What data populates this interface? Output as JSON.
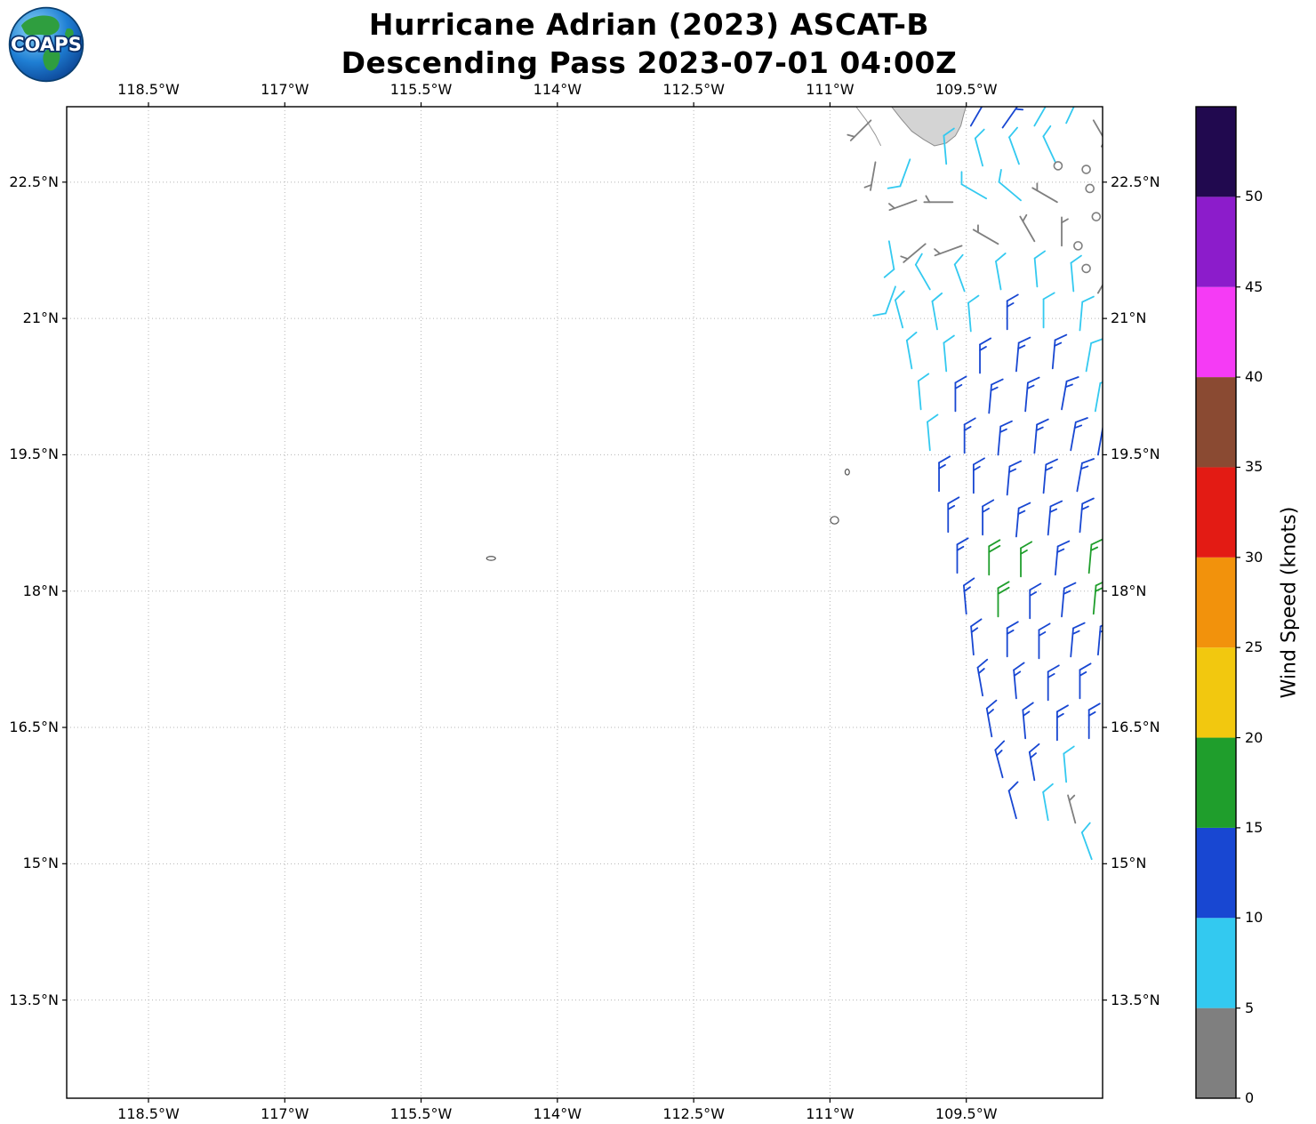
{
  "header": {
    "title_line1": "Hurricane Adrian (2023) ASCAT-B",
    "title_line2": "Descending Pass 2023-07-01 04:00Z"
  },
  "logo": {
    "text": "COAPS"
  },
  "chart_data": {
    "type": "scatter",
    "subtype": "wind_barb_map",
    "title": "Hurricane Adrian (2023) ASCAT-B Descending Pass 2023-07-01 04:00Z",
    "axes": {
      "lon_min_w": 119.4,
      "lon_max_w": 108.0,
      "lat_min": 12.42,
      "lat_max": 23.33,
      "x_ticks": [
        {
          "value": 118.5,
          "label": "118.5°W"
        },
        {
          "value": 117.0,
          "label": "117°W"
        },
        {
          "value": 115.5,
          "label": "115.5°W"
        },
        {
          "value": 114.0,
          "label": "114°W"
        },
        {
          "value": 112.5,
          "label": "112.5°W"
        },
        {
          "value": 111.0,
          "label": "111°W"
        },
        {
          "value": 109.5,
          "label": "109.5°W"
        }
      ],
      "y_ticks": [
        {
          "value": 22.5,
          "label": "22.5°N"
        },
        {
          "value": 21.0,
          "label": "21°N"
        },
        {
          "value": 19.5,
          "label": "19.5°N"
        },
        {
          "value": 18.0,
          "label": "18°N"
        },
        {
          "value": 16.5,
          "label": "16.5°N"
        },
        {
          "value": 15.0,
          "label": "15°N"
        },
        {
          "value": 13.5,
          "label": "13.5°N"
        }
      ],
      "grid": {
        "visible": true,
        "style": "dotted",
        "color": "#b5b5b5"
      }
    },
    "colorbar": {
      "label": "Wind Speed (knots)",
      "tick_values": [
        0,
        5,
        10,
        15,
        20,
        25,
        30,
        35,
        40,
        45,
        50
      ],
      "max_value": 55,
      "segments": [
        {
          "from": 0,
          "to": 5,
          "color": "#7f7f7f"
        },
        {
          "from": 5,
          "to": 10,
          "color": "#33c9f0"
        },
        {
          "from": 10,
          "to": 15,
          "color": "#1847d2"
        },
        {
          "from": 15,
          "to": 20,
          "color": "#1f9e2c"
        },
        {
          "from": 20,
          "to": 25,
          "color": "#f2c80f"
        },
        {
          "from": 25,
          "to": 30,
          "color": "#f2920c"
        },
        {
          "from": 30,
          "to": 35,
          "color": "#e31b14"
        },
        {
          "from": 35,
          "to": 40,
          "color": "#8a4a32"
        },
        {
          "from": 40,
          "to": 45,
          "color": "#f53bf5"
        },
        {
          "from": 45,
          "to": 50,
          "color": "#8c1ccb"
        },
        {
          "from": 50,
          "to": 55,
          "color": "#21094f"
        }
      ]
    },
    "barbs_format": [
      "lon_w",
      "lat_n",
      "wind_from_deg",
      "speed_kt"
    ],
    "barbs": [
      [
        110.55,
        23.18,
        225,
        4
      ],
      [
        109.45,
        23.12,
        30,
        13
      ],
      [
        109.1,
        23.1,
        35,
        13
      ],
      [
        108.75,
        23.12,
        30,
        9
      ],
      [
        108.4,
        23.15,
        25,
        9
      ],
      [
        108.1,
        23.18,
        150,
        4
      ],
      [
        110.5,
        22.72,
        190,
        4
      ],
      [
        110.12,
        22.75,
        200,
        9
      ],
      [
        109.72,
        22.7,
        355,
        9
      ],
      [
        109.32,
        22.68,
        345,
        9
      ],
      [
        108.92,
        22.7,
        340,
        9
      ],
      [
        108.52,
        22.72,
        335,
        9
      ],
      [
        110.05,
        22.3,
        250,
        4
      ],
      [
        109.65,
        22.28,
        270,
        4
      ],
      [
        109.28,
        22.32,
        300,
        9
      ],
      [
        108.9,
        22.3,
        310,
        8
      ],
      [
        108.5,
        22.28,
        300,
        4
      ],
      [
        110.35,
        21.85,
        170,
        8
      ],
      [
        109.95,
        21.82,
        230,
        4
      ],
      [
        109.55,
        21.8,
        250,
        4
      ],
      [
        109.15,
        21.82,
        300,
        4
      ],
      [
        108.75,
        21.85,
        330,
        4
      ],
      [
        108.45,
        21.8,
        0,
        4
      ],
      [
        110.28,
        21.35,
        200,
        8
      ],
      [
        109.9,
        21.32,
        330,
        8
      ],
      [
        109.52,
        21.3,
        340,
        8
      ],
      [
        109.12,
        21.32,
        350,
        9
      ],
      [
        108.72,
        21.35,
        355,
        9
      ],
      [
        108.32,
        21.3,
        355,
        9
      ],
      [
        108.05,
        21.28,
        30,
        4
      ],
      [
        110.2,
        20.9,
        345,
        8
      ],
      [
        109.82,
        20.88,
        350,
        9
      ],
      [
        109.45,
        20.86,
        355,
        9
      ],
      [
        109.05,
        20.88,
        0,
        13
      ],
      [
        108.65,
        20.9,
        0,
        9
      ],
      [
        108.25,
        20.87,
        5,
        9
      ],
      [
        110.1,
        20.45,
        350,
        9
      ],
      [
        109.72,
        20.42,
        355,
        9
      ],
      [
        109.35,
        20.4,
        0,
        13
      ],
      [
        108.95,
        20.42,
        5,
        13
      ],
      [
        108.55,
        20.45,
        5,
        13
      ],
      [
        108.18,
        20.42,
        10,
        9
      ],
      [
        110.0,
        20.0,
        355,
        9
      ],
      [
        109.62,
        19.98,
        0,
        13
      ],
      [
        109.25,
        19.96,
        5,
        13
      ],
      [
        108.85,
        19.98,
        5,
        14
      ],
      [
        108.45,
        20.0,
        10,
        13
      ],
      [
        108.08,
        19.98,
        10,
        9
      ],
      [
        109.9,
        19.55,
        355,
        9
      ],
      [
        109.52,
        19.52,
        0,
        13
      ],
      [
        109.15,
        19.5,
        5,
        14
      ],
      [
        108.75,
        19.52,
        5,
        14
      ],
      [
        108.35,
        19.55,
        10,
        13
      ],
      [
        108.05,
        19.5,
        10,
        13
      ],
      [
        109.8,
        19.1,
        0,
        13
      ],
      [
        109.42,
        19.08,
        0,
        14
      ],
      [
        109.05,
        19.06,
        5,
        14
      ],
      [
        108.65,
        19.08,
        5,
        14
      ],
      [
        108.28,
        19.1,
        10,
        13
      ],
      [
        109.7,
        18.65,
        0,
        13
      ],
      [
        109.32,
        18.62,
        0,
        14
      ],
      [
        108.95,
        18.6,
        5,
        14
      ],
      [
        108.6,
        18.62,
        5,
        14
      ],
      [
        108.25,
        18.65,
        5,
        13
      ],
      [
        109.6,
        18.2,
        0,
        13
      ],
      [
        109.25,
        18.18,
        0,
        18
      ],
      [
        108.9,
        18.16,
        0,
        17
      ],
      [
        108.52,
        18.18,
        5,
        14
      ],
      [
        108.15,
        18.2,
        5,
        17
      ],
      [
        109.5,
        17.75,
        355,
        13
      ],
      [
        109.15,
        17.72,
        0,
        18
      ],
      [
        108.8,
        17.7,
        0,
        14
      ],
      [
        108.45,
        17.72,
        5,
        14
      ],
      [
        108.1,
        17.75,
        5,
        17
      ],
      [
        109.42,
        17.3,
        355,
        13
      ],
      [
        109.05,
        17.28,
        0,
        14
      ],
      [
        108.7,
        17.26,
        0,
        14
      ],
      [
        108.35,
        17.28,
        5,
        13
      ],
      [
        108.05,
        17.3,
        5,
        13
      ],
      [
        109.32,
        16.85,
        350,
        13
      ],
      [
        108.95,
        16.82,
        355,
        13
      ],
      [
        108.6,
        16.8,
        0,
        14
      ],
      [
        108.25,
        16.82,
        0,
        13
      ],
      [
        109.22,
        16.4,
        350,
        13
      ],
      [
        108.85,
        16.38,
        355,
        13
      ],
      [
        108.5,
        16.36,
        0,
        13
      ],
      [
        108.15,
        16.38,
        0,
        13
      ],
      [
        109.1,
        15.95,
        345,
        13
      ],
      [
        108.75,
        15.92,
        350,
        13
      ],
      [
        108.4,
        15.9,
        355,
        9
      ],
      [
        108.95,
        15.5,
        345,
        12
      ],
      [
        108.6,
        15.48,
        350,
        9
      ],
      [
        108.3,
        15.45,
        345,
        4
      ],
      [
        108.12,
        15.05,
        340,
        8
      ]
    ],
    "calm_circles": [
      [
        108.49,
        22.68
      ],
      [
        108.18,
        22.64
      ],
      [
        108.14,
        22.43
      ],
      [
        108.07,
        22.12
      ],
      [
        108.27,
        21.8
      ],
      [
        108.18,
        21.55
      ]
    ],
    "coast": {
      "baja_polygon": [
        [
          110.33,
          23.34
        ],
        [
          110.22,
          23.2
        ],
        [
          110.1,
          23.06
        ],
        [
          109.97,
          22.97
        ],
        [
          109.85,
          22.9
        ],
        [
          109.72,
          22.93
        ],
        [
          109.62,
          23.01
        ],
        [
          109.56,
          23.12
        ],
        [
          109.53,
          23.24
        ],
        [
          109.5,
          23.34
        ]
      ],
      "coast_line": [
        [
          110.72,
          23.34
        ],
        [
          110.6,
          23.18
        ],
        [
          110.5,
          23.02
        ],
        [
          110.44,
          22.9
        ]
      ],
      "islands": [
        {
          "name": "Clarion Island",
          "lon_w": 114.73,
          "lat_n": 18.36,
          "rx": 5,
          "ry": 2.2
        },
        {
          "name": "San Benedicto Island",
          "lon_w": 110.81,
          "lat_n": 19.31,
          "rx": 2.4,
          "ry": 3.2
        },
        {
          "name": "Socorro Island",
          "lon_w": 110.95,
          "lat_n": 18.78,
          "rx": 4.6,
          "ry": 4.2
        }
      ]
    }
  }
}
